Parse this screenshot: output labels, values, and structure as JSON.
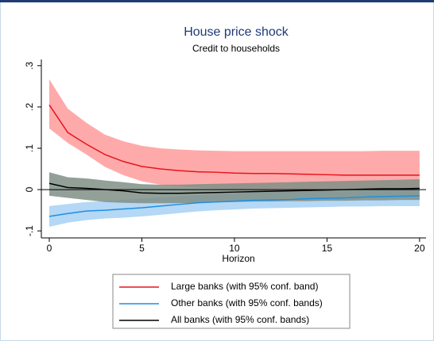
{
  "chart_data": {
    "type": "line",
    "title": "House price shock",
    "subtitle": "Credit to households",
    "x_label": "Horizon",
    "x": [
      0,
      1,
      2,
      3,
      4,
      5,
      6,
      7,
      8,
      9,
      10,
      11,
      12,
      13,
      14,
      15,
      16,
      17,
      18,
      19,
      20
    ],
    "xlim": [
      -0.43,
      20.35
    ],
    "xticks": [
      0,
      5,
      10,
      15,
      20
    ],
    "ylim": [
      -0.117,
      0.315
    ],
    "yticks": [
      {
        "value": -0.1,
        "label": "-.1"
      },
      0,
      {
        "value": 0.1,
        "label": ".1"
      },
      {
        "value": 0.2,
        "label": ".2"
      },
      {
        "value": 0.3,
        "label": ".3"
      }
    ],
    "zero_line": true,
    "series": [
      {
        "name": "Large banks (with 95% conf. band)",
        "color": "#e8141d",
        "band_color": "#ffaaaa",
        "values": [
          0.205,
          0.138,
          0.11,
          0.085,
          0.068,
          0.056,
          0.05,
          0.046,
          0.043,
          0.042,
          0.04,
          0.039,
          0.039,
          0.038,
          0.037,
          0.036,
          0.035,
          0.035,
          0.035,
          0.035,
          0.035
        ],
        "upper": [
          0.267,
          0.196,
          0.162,
          0.133,
          0.117,
          0.106,
          0.1,
          0.097,
          0.095,
          0.094,
          0.093,
          0.093,
          0.093,
          0.093,
          0.093,
          0.093,
          0.093,
          0.093,
          0.094,
          0.094,
          0.094
        ],
        "lower": [
          0.148,
          0.113,
          0.085,
          0.055,
          0.035,
          0.02,
          0.012,
          0.008,
          0.005,
          0.002,
          0.0,
          -0.002,
          -0.004,
          -0.006,
          -0.008,
          -0.01,
          -0.012,
          -0.014,
          -0.016,
          -0.018,
          -0.02
        ]
      },
      {
        "name": "Other banks (with 95% conf. bands)",
        "color": "#1f8fe0",
        "band_color": "#b4d8f5",
        "values": [
          -0.065,
          -0.058,
          -0.052,
          -0.05,
          -0.047,
          -0.044,
          -0.04,
          -0.036,
          -0.032,
          -0.03,
          -0.028,
          -0.026,
          -0.025,
          -0.024,
          -0.022,
          -0.021,
          -0.02,
          -0.018,
          -0.017,
          -0.016,
          -0.015
        ],
        "upper": [
          -0.04,
          -0.035,
          -0.03,
          -0.028,
          -0.025,
          -0.022,
          -0.019,
          -0.016,
          -0.013,
          -0.011,
          -0.009,
          -0.007,
          -0.005,
          -0.004,
          -0.002,
          -0.001,
          0.0,
          0.002,
          0.003,
          0.004,
          0.005
        ],
        "lower": [
          -0.09,
          -0.08,
          -0.074,
          -0.07,
          -0.068,
          -0.065,
          -0.061,
          -0.057,
          -0.053,
          -0.05,
          -0.048,
          -0.046,
          -0.045,
          -0.044,
          -0.043,
          -0.042,
          -0.041,
          -0.041,
          -0.04,
          -0.04,
          -0.04
        ]
      },
      {
        "name": "All banks (with 95% conf. bands)",
        "color": "#000000",
        "band_color": "#7f8f86",
        "values": [
          0.015,
          0.005,
          0.003,
          0.0,
          -0.003,
          -0.008,
          -0.009,
          -0.009,
          -0.008,
          -0.007,
          -0.006,
          -0.005,
          -0.004,
          -0.003,
          -0.002,
          -0.001,
          0.0,
          0.001,
          0.002,
          0.002,
          0.003
        ],
        "upper": [
          0.042,
          0.03,
          0.027,
          0.022,
          0.018,
          0.013,
          0.012,
          0.012,
          0.013,
          0.014,
          0.015,
          0.016,
          0.017,
          0.018,
          0.019,
          0.02,
          0.021,
          0.022,
          0.023,
          0.024,
          0.025
        ],
        "lower": [
          -0.015,
          -0.02,
          -0.025,
          -0.03,
          -0.032,
          -0.033,
          -0.033,
          -0.033,
          -0.032,
          -0.031,
          -0.03,
          -0.029,
          -0.029,
          -0.028,
          -0.028,
          -0.027,
          -0.027,
          -0.026,
          -0.026,
          -0.025,
          -0.025
        ]
      }
    ]
  }
}
